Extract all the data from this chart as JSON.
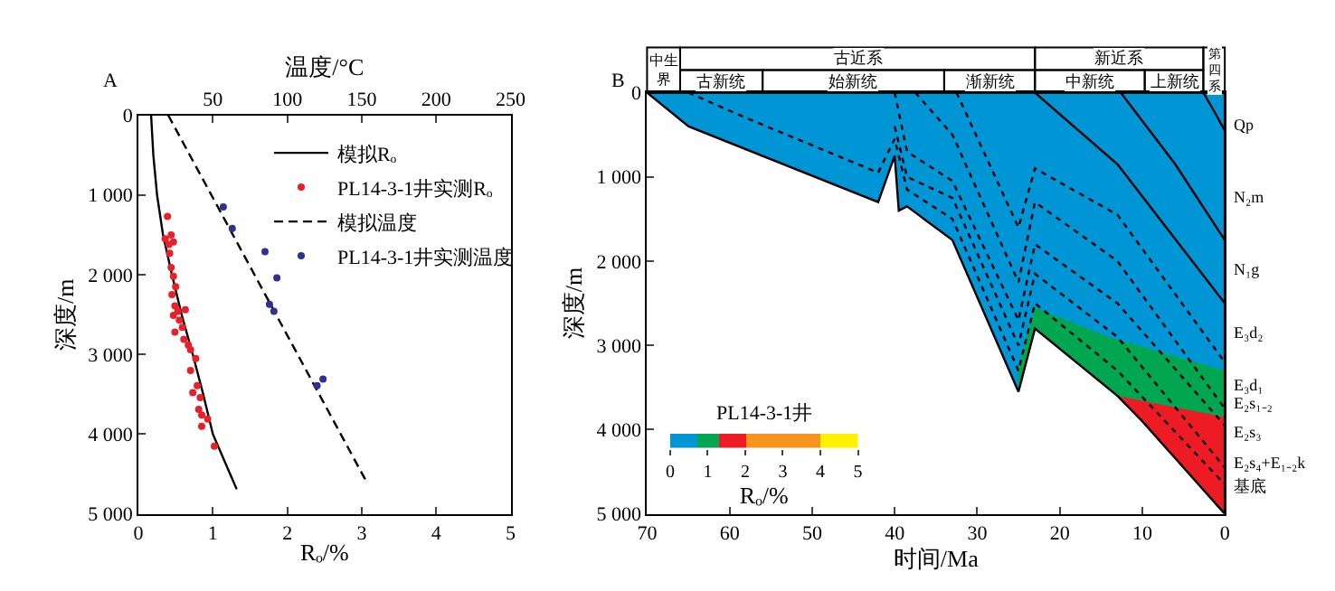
{
  "chart_data": [
    {
      "type": "line",
      "title": "A",
      "xlabel": "Rₒ/%",
      "x2label": "温度/°C",
      "ylabel": "深度/m",
      "legend": "top right",
      "xlim": [
        0,
        5
      ],
      "xticks": [
        0,
        1,
        2,
        3,
        4,
        5
      ],
      "x2lim": [
        0,
        250
      ],
      "x2ticks": [
        50,
        100,
        150,
        200,
        250
      ],
      "ylim": [
        5000,
        0
      ],
      "yticks": [
        0,
        {
          "value": 1000,
          "label": "1 000"
        },
        {
          "value": 2000,
          "label": "2 000"
        },
        {
          "value": 3000,
          "label": "3 000"
        },
        {
          "value": 4000,
          "label": "4 000"
        },
        {
          "value": 5000,
          "label": "5 000"
        }
      ],
      "series": [
        {
          "name": "模拟Rₒ",
          "type": "line",
          "color": "#000000",
          "line_style": "solid",
          "x": [
            0.17,
            0.2,
            0.25,
            0.33,
            0.45,
            0.58,
            0.73,
            0.87,
            1.0,
            1.32
          ],
          "values": [
            0,
            500,
            1000,
            1500,
            2000,
            2500,
            3000,
            3500,
            4000,
            4690
          ]
        },
        {
          "name": "PL14-3-1井实测Rₒ",
          "type": "scatter",
          "marker": "circle",
          "color": "#e8202a",
          "x": [
            0.39,
            0.36,
            0.44,
            0.47,
            0.41,
            0.42,
            0.44,
            0.47,
            0.5,
            0.45,
            0.49,
            0.63,
            0.53,
            0.47,
            0.55,
            0.49,
            0.59,
            0.61,
            0.67,
            0.7,
            0.77,
            0.7,
            0.79,
            0.73,
            0.83,
            0.81,
            0.85,
            0.85,
            0.93,
            1.02
          ],
          "values": [
            1270,
            1550,
            1500,
            1590,
            1620,
            1730,
            1910,
            2020,
            2150,
            2250,
            2390,
            2440,
            2460,
            2510,
            2570,
            2720,
            2660,
            2810,
            2880,
            2940,
            3050,
            3200,
            3390,
            3480,
            3540,
            3690,
            3760,
            3900,
            3810,
            4150
          ]
        },
        {
          "name": "模拟温度",
          "type": "line",
          "axis": "x2",
          "color": "#000000",
          "line_style": "dashed",
          "x": [
            20,
            153
          ],
          "values": [
            0,
            4590
          ]
        },
        {
          "name": "PL14-3-1井实测温度",
          "type": "scatter",
          "axis": "x2",
          "marker": "circle",
          "color": "#2e3192",
          "x": [
            57,
            63,
            85,
            93,
            88,
            91,
            120,
            124
          ],
          "values": [
            1150,
            1420,
            1710,
            2040,
            2370,
            2460,
            3390,
            3310
          ]
        }
      ]
    },
    {
      "type": "area",
      "title": "B",
      "xlabel": "时间/Ma",
      "ylabel": "深度/m",
      "xlim": [
        70,
        0
      ],
      "xticks": [
        70,
        60,
        50,
        40,
        30,
        20,
        10,
        0
      ],
      "ylim": [
        5000,
        0
      ],
      "yticks": [
        0,
        {
          "value": 1000,
          "label": "1 000"
        },
        {
          "value": 2000,
          "label": "2 000"
        },
        {
          "value": 3000,
          "label": "3 000"
        },
        {
          "value": 4000,
          "label": "4 000"
        },
        {
          "value": 5000,
          "label": "5 000"
        }
      ],
      "series": [
        {
          "type": "area",
          "color": "#0096d6",
          "line_style": "solid",
          "x": [
            70,
            65,
            42,
            40,
            39.5,
            38.5,
            33,
            25,
            23,
            13,
            10,
            0,
            0,
            70
          ],
          "values": [
            0,
            400,
            1300,
            750,
            1400,
            1350,
            1750,
            3550,
            2800,
            3600,
            3900,
            5000,
            0,
            0
          ]
        },
        {
          "type": "area",
          "color": "#00a650",
          "x": [
            25,
            23,
            14,
            0,
            0,
            10,
            13,
            23,
            25
          ],
          "values": [
            3250,
            2550,
            2900,
            3300,
            5000,
            3900,
            3600,
            2800,
            3550
          ]
        },
        {
          "type": "area",
          "color": "#ed1c24",
          "x": [
            13,
            0,
            0,
            10,
            13
          ],
          "values": [
            3600,
            3850,
            5000,
            3900,
            3600
          ]
        },
        {
          "type": "line",
          "color": "#000000",
          "line_style": "solid",
          "x": [
            2.6,
            1.3,
            0
          ],
          "values": [
            0,
            220,
            450
          ]
        },
        {
          "type": "line",
          "color": "#000000",
          "line_style": "solid",
          "x": [
            12.6,
            6,
            0
          ],
          "values": [
            0,
            850,
            1750
          ]
        },
        {
          "type": "line",
          "color": "#000000",
          "line_style": "solid",
          "x": [
            23,
            13,
            0
          ],
          "values": [
            0,
            850,
            2500
          ]
        },
        {
          "type": "line",
          "color": "#000000",
          "line_style": "dotted",
          "x": [
            32.5,
            25,
            23,
            13,
            0
          ],
          "values": [
            0,
            1600,
            900,
            1450,
            3200
          ]
        },
        {
          "type": "line",
          "color": "#000000",
          "line_style": "dotted",
          "x": [
            37.5,
            33,
            25,
            23,
            13,
            0
          ],
          "values": [
            0,
            500,
            2250,
            1300,
            2000,
            3750
          ]
        },
        {
          "type": "line",
          "color": "#000000",
          "line_style": "dotted",
          "x": [
            40,
            38.5,
            33,
            25,
            23,
            13,
            0
          ],
          "values": [
            0,
            700,
            1050,
            2700,
            1800,
            2500,
            3950
          ]
        },
        {
          "type": "line",
          "color": "#000000",
          "line_style": "dotted",
          "x": [
            40,
            38.5,
            33,
            25,
            23,
            13,
            0
          ],
          "values": [
            400,
            1000,
            1250,
            3000,
            2150,
            2900,
            4450
          ]
        },
        {
          "type": "line",
          "color": "#000000",
          "line_style": "dotted",
          "x": [
            65,
            58,
            42,
            40,
            38.5,
            33,
            25,
            23,
            13,
            0
          ],
          "values": [
            0,
            300,
            950,
            550,
            1150,
            1500,
            3300,
            2500,
            3300,
            4650
          ]
        }
      ],
      "annotations": [
        "中生界",
        "古近系",
        "新近系",
        "第四系",
        "古新统",
        "始新统",
        "渐新统",
        "中新统",
        "上新统",
        "Qp",
        "N₂m",
        "N₁g",
        "E₃d₂",
        "E₃d₁",
        "E₂s₁₋₂",
        "E₂s₃",
        "E₂s₄+E₁₋₂k",
        "基底"
      ]
    },
    {
      "type": "bar",
      "orientation": "horizontal",
      "stacked": true,
      "title": "PL14-3-1井",
      "xlabel": "Rₒ/%",
      "tick_labels": "x",
      "categories": [
        null
      ],
      "xlim": [
        0,
        5
      ],
      "xticks": [
        0,
        1,
        2,
        3,
        4,
        5
      ],
      "series": [
        {
          "color": "#0096d6",
          "values": [
            0.7
          ]
        },
        {
          "color": "#00a650",
          "values": [
            0.6
          ]
        },
        {
          "color": "#ed1c24",
          "values": [
            0.7
          ]
        },
        {
          "color": "#f7941d",
          "values": [
            2
          ]
        },
        {
          "color": "#fff200",
          "values": [
            1
          ]
        }
      ]
    }
  ]
}
